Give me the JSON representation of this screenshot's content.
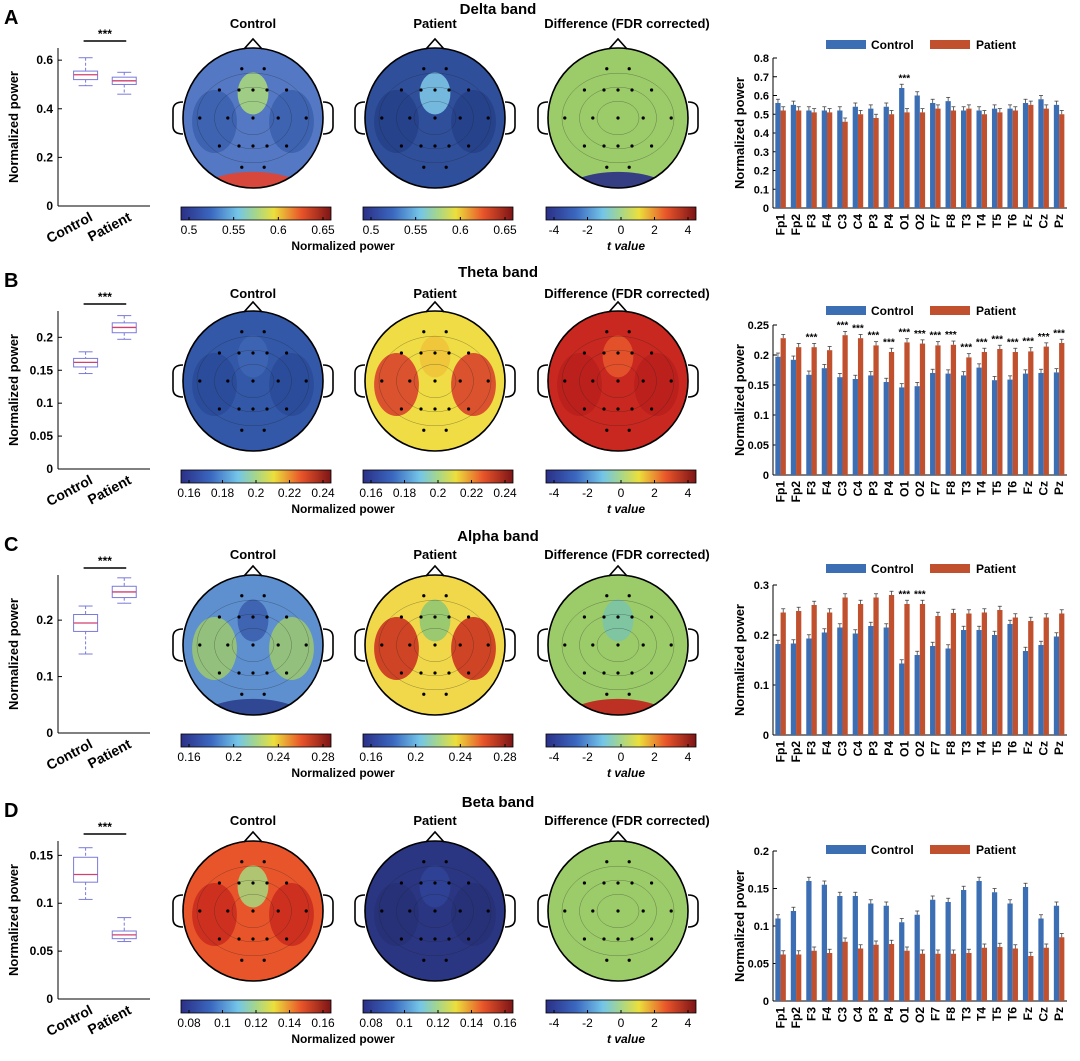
{
  "colors": {
    "control": "#3C6EB4",
    "patient": "#C0502E",
    "box": "#7A7ADB",
    "median": "#D04070"
  },
  "chart_data": [
    {
      "panel": "A",
      "band_title": "Delta band",
      "type": "bar",
      "box": {
        "ylabel": "Normalized power",
        "categories": [
          "Control",
          "Patient"
        ],
        "ylim": [
          0,
          0.65
        ],
        "yticks": [
          0,
          0.2,
          0.4,
          0.6
        ],
        "control": {
          "min": 0.495,
          "q1": 0.52,
          "median": 0.54,
          "q3": 0.555,
          "max": 0.61
        },
        "patient": {
          "min": 0.46,
          "q1": 0.5,
          "median": 0.515,
          "q3": 0.53,
          "max": 0.55
        },
        "sig": "***"
      },
      "topo": {
        "titles": [
          "Control",
          "Patient",
          "Difference (FDR corrected)"
        ],
        "cb1": {
          "ticks": [
            "0.5",
            "0.55",
            "0.6",
            "0.65"
          ],
          "label": "Normalized power"
        },
        "cb2": {
          "ticks": [
            "0.5",
            "0.55",
            "0.6",
            "0.65"
          ]
        },
        "cb3": {
          "ticks": [
            "-4",
            "-2",
            "0",
            "2",
            "4"
          ],
          "label": "t value"
        }
      },
      "bar": {
        "ylabel": "Normalized power",
        "legend": [
          "Control",
          "Patient"
        ],
        "ylim": [
          0,
          0.8
        ],
        "yticks": [
          0,
          0.1,
          0.2,
          0.3,
          0.4,
          0.5,
          0.6,
          0.7,
          0.8
        ],
        "categories": [
          "Fp1",
          "Fp2",
          "F3",
          "F4",
          "C3",
          "C4",
          "P3",
          "P4",
          "O1",
          "O2",
          "F7",
          "F8",
          "T3",
          "T4",
          "T5",
          "T6",
          "Fz",
          "Cz",
          "Pz"
        ],
        "series": [
          {
            "name": "Control",
            "values": [
              0.56,
              0.55,
              0.52,
              0.52,
              0.52,
              0.54,
              0.53,
              0.54,
              0.64,
              0.6,
              0.56,
              0.57,
              0.52,
              0.52,
              0.53,
              0.53,
              0.56,
              0.58,
              0.55
            ]
          },
          {
            "name": "Patient",
            "values": [
              0.52,
              0.52,
              0.51,
              0.51,
              0.46,
              0.5,
              0.48,
              0.5,
              0.51,
              0.51,
              0.53,
              0.52,
              0.53,
              0.5,
              0.51,
              0.52,
              0.55,
              0.53,
              0.5
            ]
          }
        ],
        "sig": [
          {
            "index": 8,
            "label": "***"
          }
        ]
      }
    },
    {
      "panel": "B",
      "band_title": "Theta band",
      "type": "bar",
      "box": {
        "ylabel": "Normalized power",
        "categories": [
          "Control",
          "Patient"
        ],
        "ylim": [
          0,
          0.24
        ],
        "yticks": [
          0,
          0.05,
          0.1,
          0.15,
          0.2
        ],
        "control": {
          "min": 0.145,
          "q1": 0.155,
          "median": 0.162,
          "q3": 0.168,
          "max": 0.178
        },
        "patient": {
          "min": 0.197,
          "q1": 0.207,
          "median": 0.215,
          "q3": 0.222,
          "max": 0.233
        },
        "sig": "***"
      },
      "topo": {
        "titles": [
          "Control",
          "Patient",
          "Difference (FDR corrected)"
        ],
        "cb1": {
          "ticks": [
            "0.16",
            "0.18",
            "0.2",
            "0.22",
            "0.24"
          ],
          "label": "Normalized power"
        },
        "cb2": {
          "ticks": [
            "0.16",
            "0.18",
            "0.2",
            "0.22",
            "0.24"
          ]
        },
        "cb3": {
          "ticks": [
            "-4",
            "-2",
            "0",
            "2",
            "4"
          ],
          "label": "t value"
        }
      },
      "bar": {
        "ylabel": "Normalized power",
        "legend": [
          "Control",
          "Patient"
        ],
        "ylim": [
          0,
          0.25
        ],
        "yticks": [
          0,
          0.05,
          0.1,
          0.15,
          0.2,
          0.25
        ],
        "categories": [
          "Fp1",
          "Fp2",
          "F3",
          "F4",
          "C3",
          "C4",
          "P3",
          "P4",
          "O1",
          "O2",
          "F7",
          "F8",
          "T3",
          "T4",
          "T5",
          "T6",
          "Fz",
          "Cz",
          "Pz"
        ],
        "series": [
          {
            "name": "Control",
            "values": [
              0.197,
              0.192,
              0.167,
              0.178,
              0.163,
              0.16,
              0.166,
              0.155,
              0.146,
              0.148,
              0.17,
              0.169,
              0.166,
              0.179,
              0.158,
              0.159,
              0.169,
              0.17,
              0.171
            ]
          },
          {
            "name": "Patient",
            "values": [
              0.228,
              0.213,
              0.213,
              0.208,
              0.233,
              0.228,
              0.216,
              0.205,
              0.221,
              0.219,
              0.216,
              0.217,
              0.196,
              0.205,
              0.21,
              0.205,
              0.206,
              0.214,
              0.22
            ]
          }
        ],
        "sig": [
          {
            "index": 2,
            "label": "***"
          },
          {
            "index": 4,
            "label": "***"
          },
          {
            "index": 5,
            "label": "***"
          },
          {
            "index": 6,
            "label": "***"
          },
          {
            "index": 7,
            "label": "***"
          },
          {
            "index": 8,
            "label": "***"
          },
          {
            "index": 9,
            "label": "***"
          },
          {
            "index": 10,
            "label": "***"
          },
          {
            "index": 11,
            "label": "***"
          },
          {
            "index": 12,
            "label": "***"
          },
          {
            "index": 13,
            "label": "***"
          },
          {
            "index": 14,
            "label": "***"
          },
          {
            "index": 15,
            "label": "***"
          },
          {
            "index": 16,
            "label": "***"
          },
          {
            "index": 17,
            "label": "***"
          },
          {
            "index": 18,
            "label": "***"
          }
        ]
      }
    },
    {
      "panel": "C",
      "band_title": "Alpha band",
      "type": "bar",
      "box": {
        "ylabel": "Normalized power",
        "categories": [
          "Control",
          "Patient"
        ],
        "ylim": [
          0,
          0.28
        ],
        "yticks": [
          0,
          0.1,
          0.2
        ],
        "control": {
          "min": 0.14,
          "q1": 0.18,
          "median": 0.195,
          "q3": 0.21,
          "max": 0.225
        },
        "patient": {
          "min": 0.23,
          "q1": 0.24,
          "median": 0.25,
          "q3": 0.26,
          "max": 0.275
        },
        "sig": "***"
      },
      "topo": {
        "titles": [
          "Control",
          "Patient",
          "Difference (FDR corrected)"
        ],
        "cb1": {
          "ticks": [
            "0.16",
            "0.2",
            "0.24",
            "0.28"
          ],
          "label": "Normalized power"
        },
        "cb2": {
          "ticks": [
            "0.16",
            "0.2",
            "0.24",
            "0.28"
          ]
        },
        "cb3": {
          "ticks": [
            "-4",
            "-2",
            "0",
            "2",
            "4"
          ],
          "label": "t value"
        }
      },
      "bar": {
        "ylabel": "Normalized power",
        "legend": [
          "Control",
          "Patient"
        ],
        "ylim": [
          0,
          0.3
        ],
        "yticks": [
          0,
          0.1,
          0.2,
          0.3
        ],
        "categories": [
          "Fp1",
          "Fp2",
          "F3",
          "F4",
          "C3",
          "C4",
          "P3",
          "P4",
          "O1",
          "O2",
          "F7",
          "F8",
          "T3",
          "T4",
          "T5",
          "T6",
          "Fz",
          "Cz",
          "Pz"
        ],
        "series": [
          {
            "name": "Control",
            "values": [
              0.182,
              0.183,
              0.193,
              0.205,
              0.215,
              0.203,
              0.218,
              0.215,
              0.143,
              0.16,
              0.178,
              0.173,
              0.21,
              0.21,
              0.2,
              0.222,
              0.168,
              0.18,
              0.197
            ]
          },
          {
            "name": "Patient",
            "values": [
              0.245,
              0.248,
              0.26,
              0.245,
              0.275,
              0.262,
              0.275,
              0.28,
              0.262,
              0.262,
              0.238,
              0.244,
              0.243,
              0.245,
              0.25,
              0.235,
              0.228,
              0.235,
              0.243
            ]
          }
        ],
        "sig": [
          {
            "index": 8,
            "label": "***"
          },
          {
            "index": 9,
            "label": "***"
          }
        ]
      }
    },
    {
      "panel": "D",
      "band_title": "Beta band",
      "type": "bar",
      "box": {
        "ylabel": "Normalized power",
        "categories": [
          "Control",
          "Patient"
        ],
        "ylim": [
          0,
          0.165
        ],
        "yticks": [
          0,
          0.05,
          0.1,
          0.15
        ],
        "control": {
          "min": 0.104,
          "q1": 0.122,
          "median": 0.13,
          "q3": 0.148,
          "max": 0.158
        },
        "patient": {
          "min": 0.06,
          "q1": 0.063,
          "median": 0.067,
          "q3": 0.071,
          "max": 0.085
        },
        "sig": "***"
      },
      "topo": {
        "titles": [
          "Control",
          "Patient",
          "Difference (FDR corrected)"
        ],
        "cb1": {
          "ticks": [
            "0.08",
            "0.1",
            "0.12",
            "0.14",
            "0.16"
          ],
          "label": "Normalized power"
        },
        "cb2": {
          "ticks": [
            "0.08",
            "0.1",
            "0.12",
            "0.14",
            "0.16"
          ]
        },
        "cb3": {
          "ticks": [
            "-4",
            "-2",
            "0",
            "2",
            "4"
          ],
          "label": "t value"
        }
      },
      "bar": {
        "ylabel": "Normalized power",
        "legend": [
          "Control",
          "Patient"
        ],
        "ylim": [
          0,
          0.2
        ],
        "yticks": [
          0,
          0.05,
          0.1,
          0.15,
          0.2
        ],
        "categories": [
          "Fp1",
          "Fp2",
          "F3",
          "F4",
          "C3",
          "C4",
          "P3",
          "P4",
          "O1",
          "O2",
          "F7",
          "F8",
          "T3",
          "T4",
          "T5",
          "T6",
          "Fz",
          "Cz",
          "Pz"
        ],
        "series": [
          {
            "name": "Control",
            "values": [
              0.11,
              0.12,
              0.16,
              0.155,
              0.14,
              0.14,
              0.13,
              0.127,
              0.105,
              0.115,
              0.135,
              0.132,
              0.148,
              0.16,
              0.145,
              0.13,
              0.152,
              0.11,
              0.127
            ]
          },
          {
            "name": "Patient",
            "values": [
              0.062,
              0.062,
              0.067,
              0.064,
              0.079,
              0.07,
              0.075,
              0.076,
              0.067,
              0.063,
              0.063,
              0.063,
              0.064,
              0.071,
              0.072,
              0.07,
              0.06,
              0.071,
              0.085
            ]
          }
        ],
        "sig": []
      }
    }
  ]
}
